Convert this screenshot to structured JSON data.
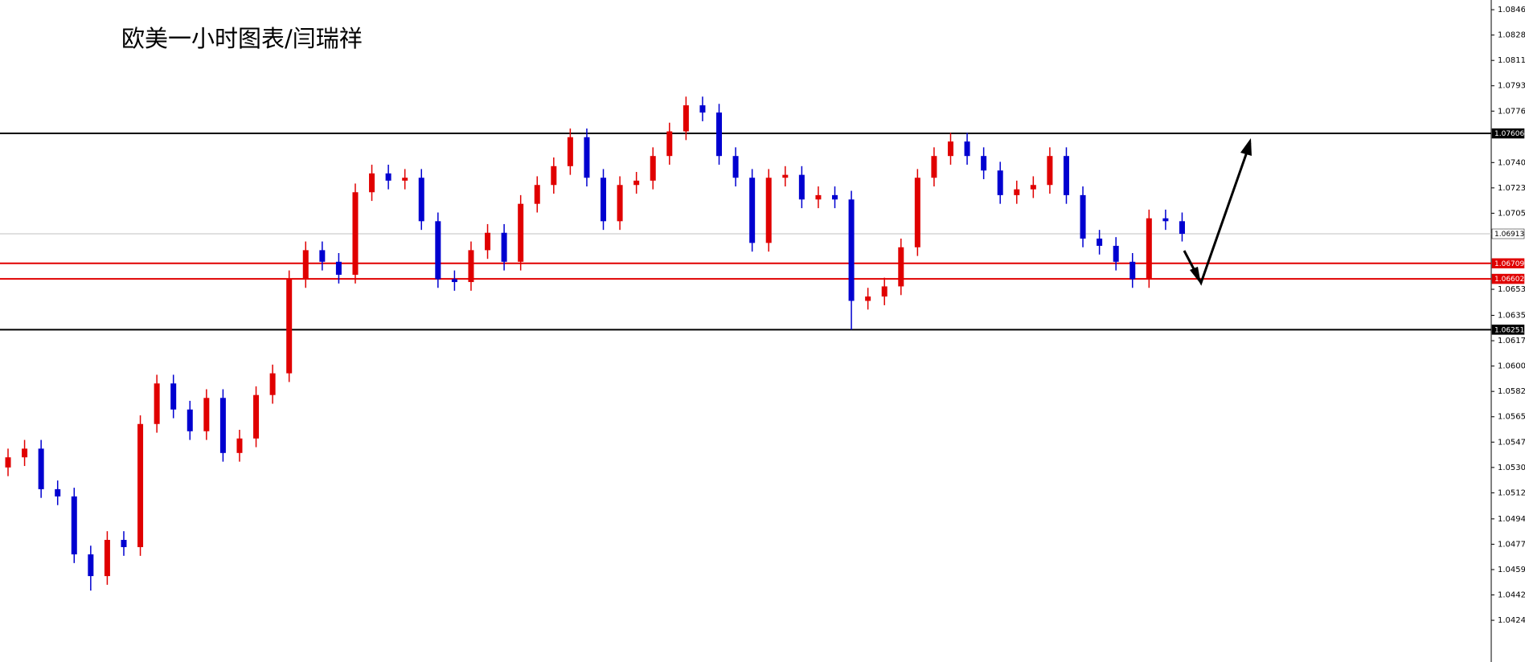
{
  "chart_data": {
    "type": "candlestick",
    "title": "欧美一小时图表/闫瑞祥",
    "up_color": "#e00000",
    "down_color": "#0000d0",
    "open": [
      1.053,
      1.0537,
      1.0543,
      1.0515,
      1.051,
      1.047,
      1.0455,
      1.048,
      1.0475,
      1.056,
      1.0588,
      1.057,
      1.0555,
      1.0578,
      1.054,
      1.055,
      1.058,
      1.0595,
      1.066,
      1.068,
      1.0672,
      1.0663,
      1.072,
      1.0733,
      1.0728,
      1.073,
      1.07,
      1.066,
      1.0658,
      1.068,
      1.0692,
      1.0672,
      1.0712,
      1.0725,
      1.0738,
      1.0758,
      1.073,
      1.07,
      1.0725,
      1.0728,
      1.0745,
      1.0762,
      1.078,
      1.0775,
      1.0745,
      1.073,
      1.0685,
      1.073,
      1.0732,
      1.0715,
      1.0718,
      1.0715,
      1.0645,
      1.0648,
      1.0655,
      1.0682,
      1.073,
      1.0745,
      1.0755,
      1.0745,
      1.0735,
      1.0718,
      1.0722,
      1.0725,
      1.0745,
      1.0718,
      1.0688,
      1.0683,
      1.0672,
      1.066,
      1.0702,
      1.07
    ],
    "high": [
      1.0543,
      1.0549,
      1.0549,
      1.0521,
      1.0516,
      1.0476,
      1.0486,
      1.0486,
      1.0566,
      1.0594,
      1.0594,
      1.0576,
      1.0584,
      1.0584,
      1.0556,
      1.0586,
      1.0601,
      1.0666,
      1.0686,
      1.0686,
      1.0678,
      1.0726,
      1.0739,
      1.0739,
      1.0736,
      1.0736,
      1.0706,
      1.0666,
      1.0686,
      1.0698,
      1.0698,
      1.0718,
      1.0731,
      1.0744,
      1.0764,
      1.0764,
      1.0736,
      1.0731,
      1.0734,
      1.0751,
      1.0768,
      1.0786,
      1.0786,
      1.0781,
      1.0751,
      1.0736,
      1.0736,
      1.0738,
      1.0738,
      1.0724,
      1.0724,
      1.0721,
      1.0654,
      1.0661,
      1.0688,
      1.0736,
      1.0751,
      1.0761,
      1.0761,
      1.0751,
      1.0741,
      1.0728,
      1.0731,
      1.0751,
      1.0751,
      1.0724,
      1.0694,
      1.0689,
      1.0678,
      1.0708,
      1.0708,
      1.0706
    ],
    "low": [
      1.0524,
      1.0531,
      1.0509,
      1.0504,
      1.0464,
      1.0445,
      1.0449,
      1.0469,
      1.0469,
      1.0554,
      1.0564,
      1.0549,
      1.0549,
      1.0534,
      1.0534,
      1.0544,
      1.0574,
      1.0589,
      1.0654,
      1.0666,
      1.0657,
      1.0657,
      1.0714,
      1.0722,
      1.0722,
      1.0694,
      1.0654,
      1.0652,
      1.0652,
      1.0674,
      1.0666,
      1.0666,
      1.0706,
      1.0719,
      1.0732,
      1.0724,
      1.0694,
      1.0694,
      1.0719,
      1.0722,
      1.0739,
      1.0756,
      1.0769,
      1.0739,
      1.0724,
      1.0679,
      1.0679,
      1.0724,
      1.0709,
      1.0709,
      1.0709,
      1.06251,
      1.0639,
      1.0642,
      1.0649,
      1.0676,
      1.0724,
      1.0739,
      1.0739,
      1.0729,
      1.0712,
      1.0712,
      1.0716,
      1.0719,
      1.0712,
      1.0682,
      1.0677,
      1.0666,
      1.0654,
      1.0654,
      1.0694,
      1.0686
    ],
    "close": [
      1.0537,
      1.0543,
      1.0515,
      1.051,
      1.047,
      1.0455,
      1.048,
      1.0475,
      1.056,
      1.0588,
      1.057,
      1.0555,
      1.0578,
      1.054,
      1.055,
      1.058,
      1.0595,
      1.066,
      1.068,
      1.0672,
      1.0663,
      1.072,
      1.0733,
      1.0728,
      1.073,
      1.07,
      1.066,
      1.0658,
      1.068,
      1.0692,
      1.0672,
      1.0712,
      1.0725,
      1.0738,
      1.0758,
      1.073,
      1.07,
      1.0725,
      1.0728,
      1.0745,
      1.0762,
      1.078,
      1.0775,
      1.0745,
      1.073,
      1.0685,
      1.073,
      1.0732,
      1.0715,
      1.0718,
      1.0715,
      1.0645,
      1.0648,
      1.0655,
      1.0682,
      1.073,
      1.0745,
      1.0755,
      1.0745,
      1.0735,
      1.0718,
      1.0722,
      1.0725,
      1.0745,
      1.0718,
      1.0688,
      1.0683,
      1.0672,
      1.066,
      1.0702,
      1.07,
      1.06913
    ],
    "ylim": [
      1.03957,
      1.08527
    ],
    "yticks": [
      {
        "value": 1.0846,
        "label": "1.08460"
      },
      1.08285,
      {
        "value": 1.0811,
        "label": "1.08110"
      },
      1.07935,
      {
        "value": 1.0776,
        "label": "1.07760"
      },
      1.07405,
      {
        "value": 1.0723,
        "label": "1.07230"
      },
      1.07055,
      {
        "value": 1.0653,
        "label": "1.06530"
      },
      {
        "value": 1.0635,
        "label": "1.06350"
      },
      1.06175,
      {
        "value": 1.06,
        "label": "1.06000"
      },
      1.05825,
      {
        "value": 1.0565,
        "label": "1.05650"
      },
      1.05475,
      {
        "value": 1.053,
        "label": "1.05300"
      },
      1.05125,
      1.04945,
      {
        "value": 1.0477,
        "label": "1.04770"
      },
      1.04595,
      {
        "value": 1.0442,
        "label": "1.04420"
      },
      1.04245
    ],
    "levels": [
      {
        "value": 1.07606,
        "color": "#000000"
      },
      {
        "value": 1.06913,
        "color": "#c0c0c0"
      },
      {
        "value": 1.06709,
        "color": "#e00000"
      },
      {
        "value": 1.06602,
        "color": "#e00000"
      },
      {
        "value": 1.06251,
        "color": "#000000"
      }
    ]
  }
}
